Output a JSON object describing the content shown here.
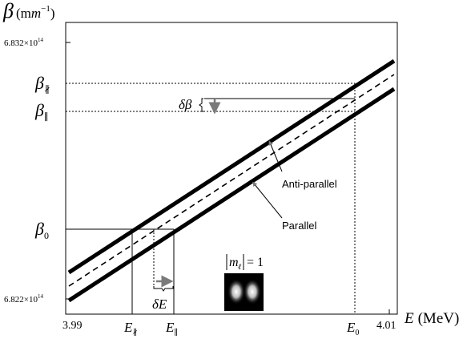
{
  "y_axis": {
    "symbol": "β",
    "unit": "(m",
    "unit_exp": "−1",
    "unit_close": ")",
    "tick_top_mantissa": "6.832×10",
    "tick_top_exp": "14",
    "tick_bottom_mantissa": "6.822×10",
    "tick_bottom_exp": "14"
  },
  "x_axis": {
    "symbol": "E",
    "unit": "(MeV)",
    "tick_left": "3.99",
    "tick_right": "4.01"
  },
  "labels": {
    "beta": "β",
    "sub_anti": "∦",
    "sub_par": "∥",
    "sub_zero": "0",
    "e": "E",
    "delta_beta": "δβ",
    "delta_e": "δE",
    "anti_parallel": "Anti-parallel",
    "parallel": "Parallel",
    "m_sym": "m",
    "m_sub": "ℓ",
    "m_eq": "= 1"
  },
  "colors": {
    "line": "#000000",
    "arrow": "#7a7a7a"
  },
  "icons": {
    "mode_image": "two-lobe-mode-icon"
  }
}
